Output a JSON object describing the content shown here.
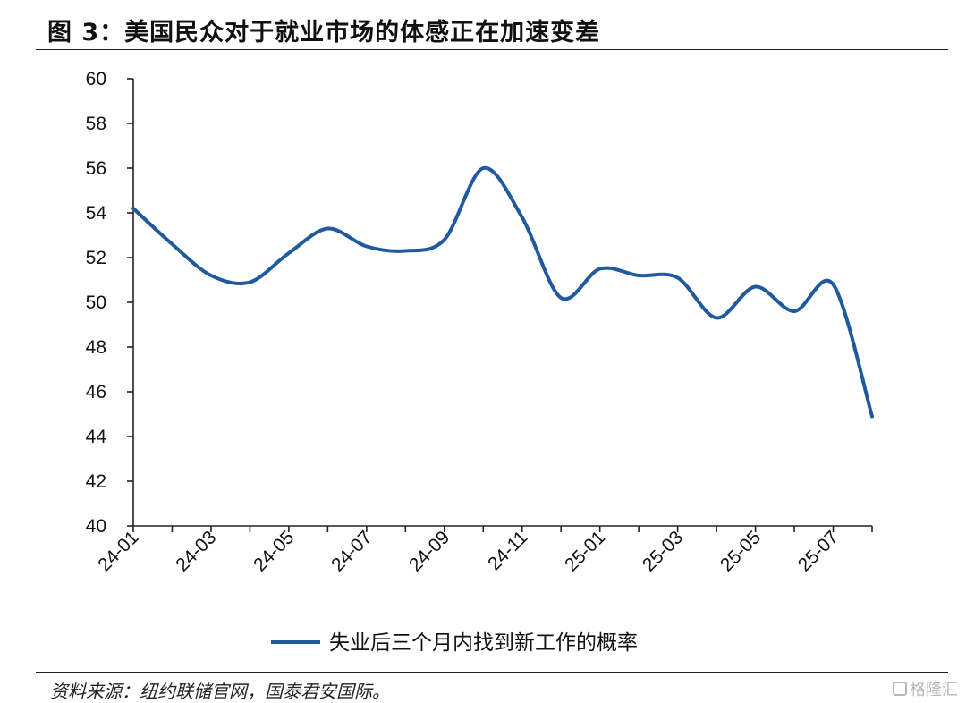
{
  "figure": {
    "title": "图 3：美国民众对于就业市场的体感正在加速变差",
    "source": "资料来源：纽约联储官网，国泰君安国际。",
    "watermark": "格隆汇"
  },
  "chart_data": {
    "type": "line",
    "title": "",
    "xlabel": "",
    "ylabel": "",
    "x": [
      "24-01",
      "24-02",
      "24-03",
      "24-04",
      "24-05",
      "24-06",
      "24-07",
      "24-08",
      "24-09",
      "24-10",
      "24-11",
      "24-12",
      "25-01",
      "25-02",
      "25-03",
      "25-04",
      "25-05",
      "25-06",
      "25-07",
      "25-08"
    ],
    "x_tick_labels": [
      "24-01",
      "24-03",
      "24-05",
      "24-07",
      "24-09",
      "24-11",
      "25-01",
      "25-03",
      "25-05",
      "25-07"
    ],
    "ylim": [
      40,
      60
    ],
    "y_ticks": [
      40,
      42,
      44,
      46,
      48,
      50,
      52,
      54,
      56,
      58,
      60
    ],
    "grid": false,
    "legend_position": "bottom",
    "series": [
      {
        "name": "失业后三个月内找到新工作的概率",
        "color": "#1f5a9e",
        "values": [
          54.2,
          52.6,
          51.2,
          50.9,
          52.2,
          53.3,
          52.5,
          52.3,
          52.8,
          56.0,
          53.8,
          50.2,
          51.5,
          51.2,
          51.1,
          49.3,
          50.7,
          49.6,
          50.8,
          44.9
        ]
      }
    ]
  }
}
